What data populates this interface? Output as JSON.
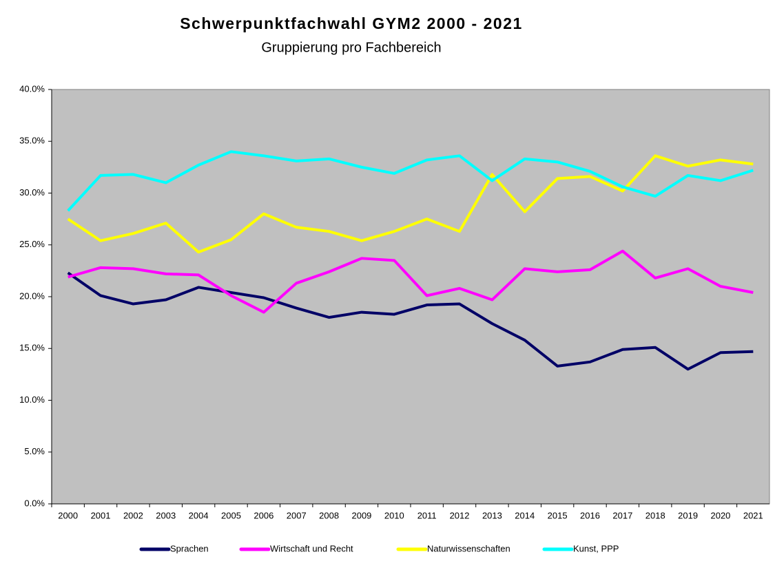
{
  "chart_data": {
    "type": "line",
    "title": "Schwerpunktfachwahl GYM2 2000 - 2021",
    "subtitle": "Gruppierung pro Fachbereich",
    "categories": [
      "2000",
      "2001",
      "2002",
      "2003",
      "2004",
      "2005",
      "2006",
      "2007",
      "2008",
      "2009",
      "2010",
      "2011",
      "2012",
      "2013",
      "2014",
      "2015",
      "2016",
      "2017",
      "2018",
      "2019",
      "2020",
      "2021"
    ],
    "series": [
      {
        "name": "Sprachen",
        "color": "#000066",
        "values": [
          22.3,
          20.1,
          19.3,
          19.7,
          20.9,
          20.4,
          19.9,
          18.9,
          18.0,
          18.5,
          18.3,
          19.2,
          19.3,
          17.4,
          15.8,
          13.3,
          13.7,
          14.9,
          15.1,
          13.0,
          14.6,
          14.7
        ]
      },
      {
        "name": "Wirtschaft und Recht",
        "color": "#ff00ff",
        "values": [
          21.9,
          22.8,
          22.7,
          22.2,
          22.1,
          20.1,
          18.5,
          21.3,
          22.4,
          23.7,
          23.5,
          20.1,
          20.8,
          19.7,
          22.7,
          22.4,
          22.6,
          24.4,
          21.8,
          22.7,
          21.0,
          20.4
        ]
      },
      {
        "name": "Naturwissenschaften",
        "color": "#ffff00",
        "values": [
          27.5,
          25.4,
          26.1,
          27.1,
          24.3,
          25.5,
          28.0,
          26.7,
          26.3,
          25.4,
          26.3,
          27.5,
          26.3,
          31.8,
          28.2,
          31.4,
          31.6,
          30.2,
          33.6,
          32.6,
          33.2,
          32.8
        ]
      },
      {
        "name": "Kunst, PPP",
        "color": "#00ffff",
        "values": [
          28.3,
          31.7,
          31.8,
          31.0,
          32.7,
          34.0,
          33.6,
          33.1,
          33.3,
          32.5,
          31.9,
          33.2,
          33.6,
          31.2,
          33.3,
          33.0,
          32.1,
          30.6,
          29.7,
          31.7,
          31.2,
          32.2
        ]
      }
    ],
    "ylim": [
      0,
      40
    ],
    "yticks": [
      {
        "value": 0,
        "label": "0.0%"
      },
      {
        "value": 5,
        "label": "5.0%"
      },
      {
        "value": 10,
        "label": "10.0%"
      },
      {
        "value": 15,
        "label": "15.0%"
      },
      {
        "value": 20,
        "label": "20.0%"
      },
      {
        "value": 25,
        "label": "25.0%"
      },
      {
        "value": 30,
        "label": "30.0%"
      },
      {
        "value": 35,
        "label": "35.0%"
      },
      {
        "value": 40,
        "label": "40.0%"
      }
    ],
    "grid": false,
    "plot_background": "#c0c0c0",
    "legend": "bottom"
  }
}
